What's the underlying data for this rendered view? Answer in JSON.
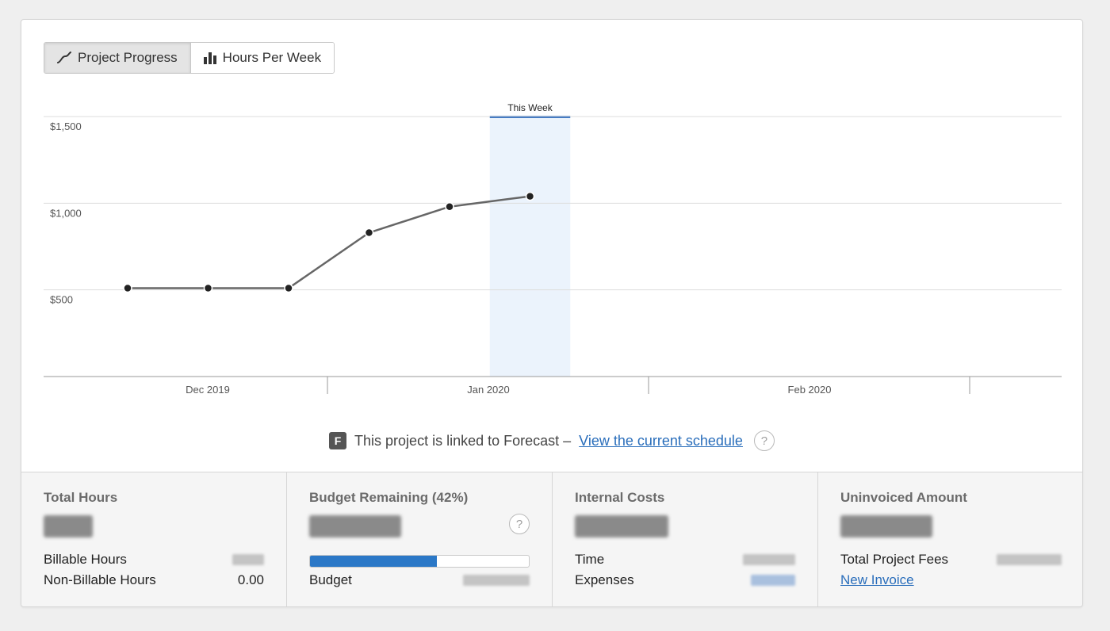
{
  "toggle": {
    "project_progress": "Project Progress",
    "hours_per_week": "Hours Per Week"
  },
  "chart_data": {
    "type": "line",
    "y_ticks": [
      "$1,500",
      "$1,000",
      "$500"
    ],
    "ylim": [
      0,
      1500
    ],
    "x_labels": [
      "Dec 2019",
      "Jan 2020",
      "Feb 2020"
    ],
    "highlight_label": "This Week",
    "series": [
      {
        "values": [
          510,
          510,
          510,
          830,
          980,
          1040
        ]
      }
    ],
    "colors": {
      "line": "#666666",
      "point": "#222222",
      "highlight": "#ebf3fc",
      "highlight_top": "#2f6dbf",
      "grid": "#dddddd"
    }
  },
  "forecast": {
    "badge": "F",
    "text": "This project is linked to Forecast –",
    "link": "View the current schedule",
    "help": "?"
  },
  "stats": {
    "total_hours": {
      "title": "Total Hours",
      "billable_label": "Billable Hours",
      "non_billable_label": "Non-Billable Hours",
      "non_billable_value": "0.00"
    },
    "budget": {
      "title": "Budget Remaining (42%)",
      "progress_used": 0.58,
      "budget_label": "Budget",
      "help": "?"
    },
    "internal_costs": {
      "title": "Internal Costs",
      "time_label": "Time",
      "expenses_label": "Expenses"
    },
    "uninvoiced": {
      "title": "Uninvoiced Amount",
      "fees_label": "Total Project Fees",
      "new_invoice": "New Invoice"
    }
  }
}
